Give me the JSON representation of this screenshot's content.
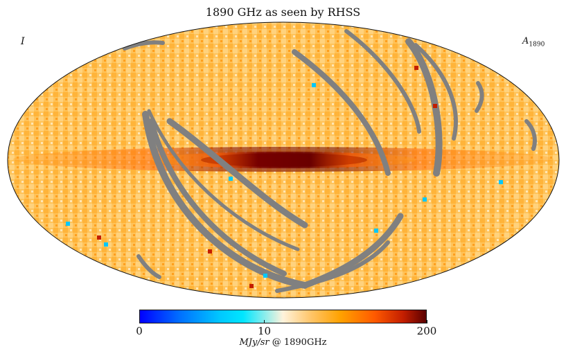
{
  "title": "1890 GHz as seen by RHSS",
  "corner_left": "I",
  "corner_right": {
    "base": "A",
    "sub": "1890"
  },
  "colorbar": {
    "ticks": [
      {
        "label": "0",
        "frac": 0.0
      },
      {
        "label": "10",
        "frac": 0.435
      },
      {
        "label": "200",
        "frac": 1.0
      }
    ],
    "unit_italic": "MJy/sr",
    "unit_rest": " @ 1890GHz"
  },
  "colors": {
    "background_map": "#ffc35a",
    "plane_dark": "#6a0000",
    "plane_mid": "#ff5a00",
    "masked": "#808080",
    "low": "#00c8ff"
  }
}
